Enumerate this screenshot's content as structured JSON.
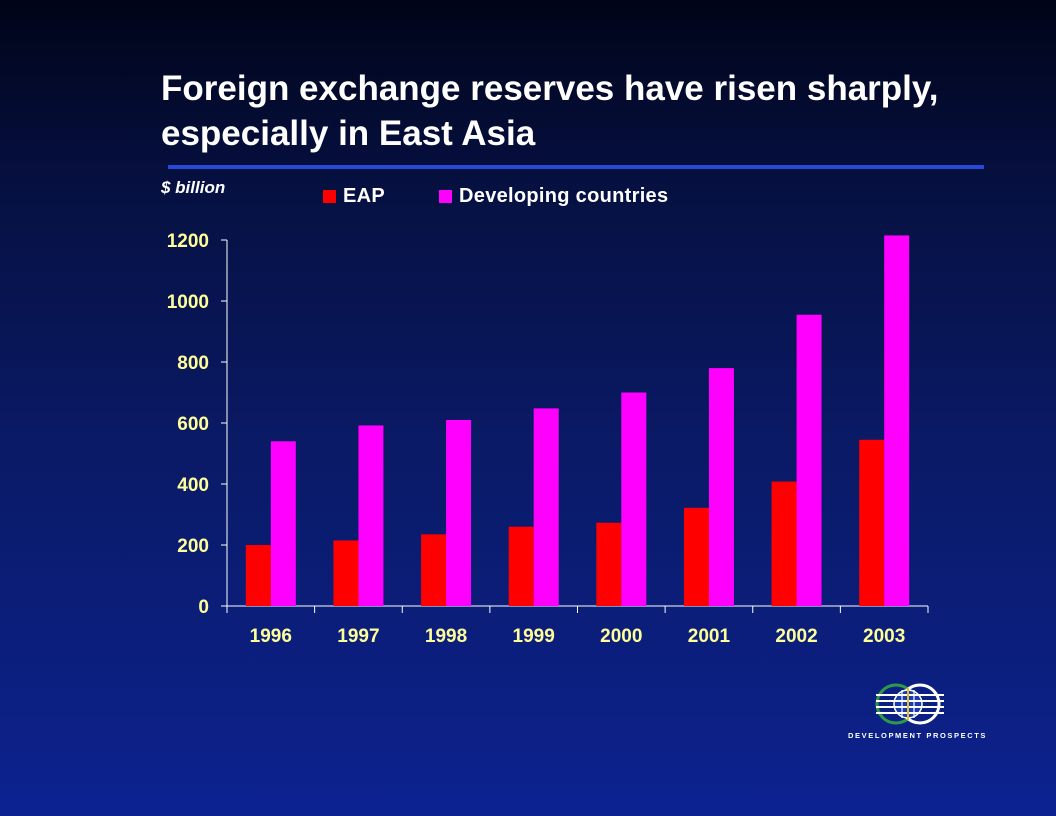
{
  "slide": {
    "title": "Foreign exchange reserves have risen sharply, especially in East Asia",
    "units_label": "$ billion",
    "logo_text": "DEVELOPMENT PROSPECTS",
    "rule_color": "#2848d8"
  },
  "chart_data": {
    "type": "bar",
    "title": "",
    "xlabel": "",
    "ylabel": "$ billion",
    "categories": [
      "1996",
      "1997",
      "1998",
      "1999",
      "2000",
      "2001",
      "2002",
      "2003"
    ],
    "series": [
      {
        "name": "EAP",
        "color": "#ff0000",
        "values": [
          200,
          215,
          235,
          260,
          273,
          322,
          408,
          545
        ]
      },
      {
        "name": "Developing countries",
        "color": "#ff00ff",
        "values": [
          540,
          592,
          610,
          648,
          700,
          780,
          955,
          1215
        ]
      }
    ],
    "ylim": [
      0,
      1200
    ],
    "yticks": [
      0,
      200,
      400,
      600,
      800,
      1000,
      1200
    ],
    "grid": false,
    "legend_position": "top",
    "tick_label_color": "#ffff99",
    "axis_color": "#ffffff"
  }
}
